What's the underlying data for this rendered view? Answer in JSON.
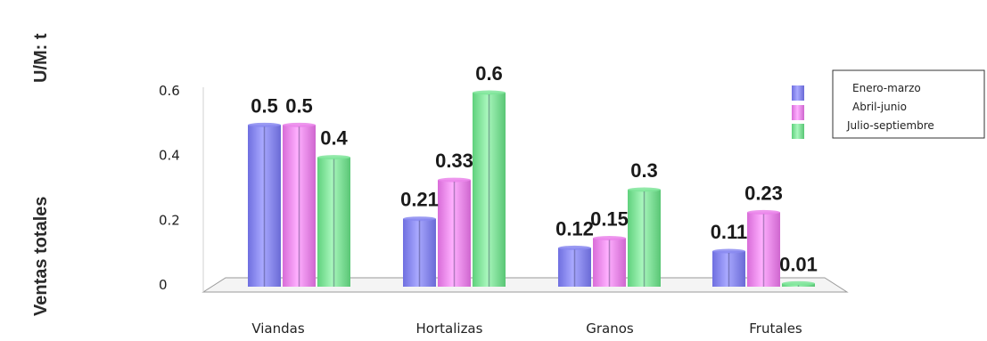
{
  "chart_data": {
    "type": "bar",
    "unit_label": "U/M: t",
    "ylabel": "Ventas totales",
    "categories": [
      "Viandas",
      "Hortalizas",
      "Granos",
      "Frutales"
    ],
    "series": [
      {
        "name": "Enero-marzo",
        "values": [
          0.5,
          0.21,
          0.12,
          0.11
        ],
        "labels": [
          "0.5",
          "0.21",
          "0.12",
          "0.11"
        ],
        "color": "#8a8af0"
      },
      {
        "name": "Abril-junio",
        "values": [
          0.5,
          0.33,
          0.15,
          0.23
        ],
        "labels": [
          "0.5",
          "0.33",
          "0.15",
          "0.23"
        ],
        "color": "#ea84ea"
      },
      {
        "name": "Julio-septiembre",
        "values": [
          0.4,
          0.6,
          0.3,
          0.01
        ],
        "labels": [
          "0.4",
          "0.6",
          "0.3",
          "0.01"
        ],
        "color": "#7fe59a"
      }
    ],
    "yticks": [
      "0",
      "0.2",
      "0.4",
      "0.6"
    ],
    "ylim": [
      0,
      0.6
    ],
    "legend_position": "top-right",
    "grid": false
  }
}
